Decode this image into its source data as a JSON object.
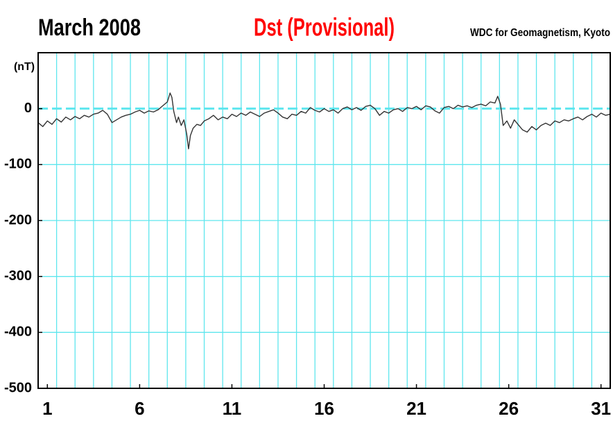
{
  "chart_data": {
    "type": "line",
    "title": "March  2008",
    "subtitle": "Dst (Provisional)",
    "source": "WDC for Geomagnetism, Kyoto",
    "ylabel": "(nT)",
    "color": "#333333",
    "grid_color": "#5ee6ee",
    "xlim": [
      1,
      32
    ],
    "ylim": [
      -500,
      100
    ],
    "yticks": [
      0,
      -100,
      -200,
      -300,
      -400,
      -500
    ],
    "xticks": [
      {
        "value": 1.5,
        "label": "1"
      },
      {
        "value": 6.5,
        "label": "6"
      },
      {
        "value": 11.5,
        "label": "11"
      },
      {
        "value": 16.5,
        "label": "16"
      },
      {
        "value": 21.5,
        "label": "21"
      },
      {
        "value": 26.5,
        "label": "26"
      },
      {
        "value": 31.5,
        "label": "31"
      }
    ],
    "xgrid": [
      2,
      3,
      4,
      5,
      6,
      7,
      8,
      9,
      10,
      11,
      12,
      13,
      14,
      15,
      16,
      17,
      18,
      19,
      20,
      21,
      22,
      23,
      24,
      25,
      26,
      27,
      28,
      29,
      30,
      31
    ],
    "x": [
      1,
      1.25,
      1.5,
      1.75,
      2,
      2.25,
      2.5,
      2.75,
      3,
      3.25,
      3.5,
      3.75,
      4,
      4.25,
      4.5,
      4.75,
      5,
      5.25,
      5.5,
      5.75,
      6,
      6.25,
      6.5,
      6.75,
      7,
      7.25,
      7.5,
      7.75,
      8,
      8.15,
      8.25,
      8.35,
      8.5,
      8.6,
      8.75,
      8.9,
      9.05,
      9.15,
      9.25,
      9.4,
      9.6,
      9.8,
      10,
      10.25,
      10.5,
      10.75,
      11,
      11.25,
      11.5,
      11.75,
      12,
      12.25,
      12.5,
      12.75,
      13,
      13.25,
      13.5,
      13.75,
      14,
      14.25,
      14.5,
      14.75,
      15,
      15.25,
      15.5,
      15.75,
      16,
      16.25,
      16.5,
      16.75,
      17,
      17.25,
      17.5,
      17.75,
      18,
      18.25,
      18.5,
      18.75,
      19,
      19.25,
      19.5,
      19.75,
      20,
      20.25,
      20.5,
      20.75,
      21,
      21.25,
      21.5,
      21.75,
      22,
      22.25,
      22.5,
      22.75,
      23,
      23.25,
      23.5,
      23.75,
      24,
      24.25,
      24.5,
      24.75,
      25,
      25.25,
      25.5,
      25.75,
      25.9,
      26.05,
      26.2,
      26.4,
      26.6,
      26.8,
      27,
      27.25,
      27.5,
      27.75,
      28,
      28.25,
      28.5,
      28.75,
      29,
      29.25,
      29.5,
      29.75,
      30,
      30.25,
      30.5,
      30.75,
      31,
      31.25,
      31.5,
      31.75,
      32
    ],
    "values": [
      -25,
      -32,
      -22,
      -28,
      -18,
      -24,
      -15,
      -20,
      -14,
      -18,
      -12,
      -15,
      -10,
      -8,
      -3,
      -10,
      -25,
      -20,
      -15,
      -12,
      -10,
      -6,
      -3,
      -8,
      -4,
      -6,
      -2,
      5,
      12,
      28,
      20,
      -5,
      -25,
      -15,
      -30,
      -20,
      -45,
      -72,
      -48,
      -35,
      -28,
      -30,
      -22,
      -18,
      -12,
      -20,
      -15,
      -18,
      -10,
      -14,
      -8,
      -12,
      -6,
      -10,
      -14,
      -8,
      -5,
      -2,
      -8,
      -15,
      -18,
      -10,
      -12,
      -5,
      -8,
      2,
      -3,
      -6,
      0,
      -5,
      -2,
      -8,
      0,
      3,
      -2,
      2,
      -3,
      4,
      6,
      0,
      -12,
      -5,
      -8,
      -2,
      0,
      -5,
      2,
      0,
      4,
      -2,
      5,
      3,
      -4,
      -8,
      2,
      4,
      0,
      6,
      3,
      5,
      2,
      6,
      8,
      5,
      12,
      10,
      22,
      8,
      -30,
      -22,
      -35,
      -20,
      -28,
      -38,
      -42,
      -32,
      -38,
      -30,
      -26,
      -30,
      -22,
      -25,
      -20,
      -22,
      -18,
      -15,
      -20,
      -14,
      -10,
      -15,
      -8,
      -12,
      -10
    ]
  }
}
